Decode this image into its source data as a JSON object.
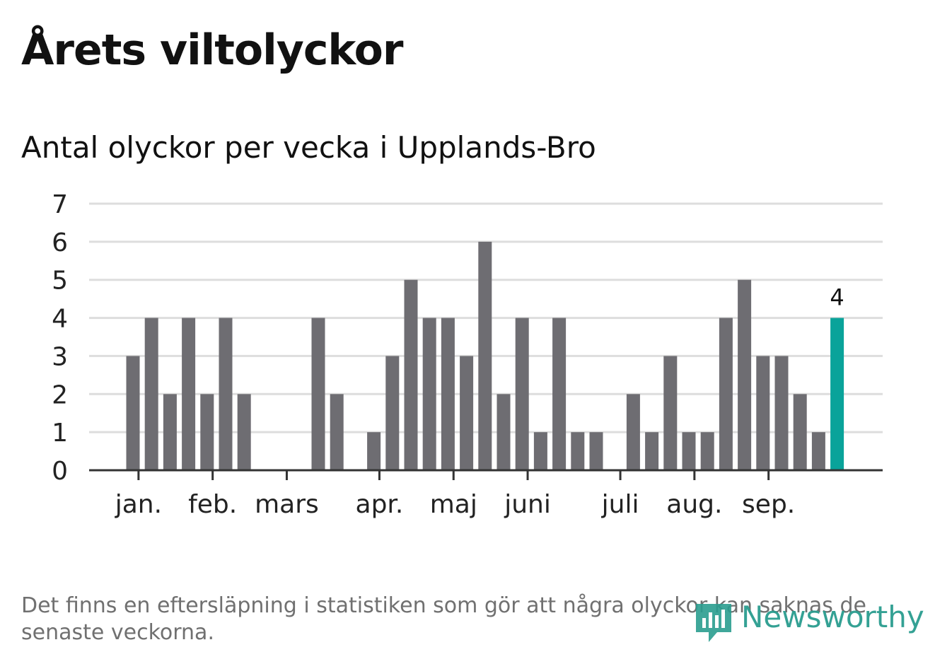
{
  "header": {
    "title": "Årets viltolyckor",
    "subtitle": "Antal olyckor per vecka i Upplands-Bro"
  },
  "footnote": "Det finns en eftersläpning i statistiken som gör att några olyckor kan saknas de senaste veckorna.",
  "logo": {
    "text": "Newsworthy",
    "icon": "newsworthy-logo-icon"
  },
  "colors": {
    "bar": "#6e6d72",
    "highlight": "#0aa39a",
    "grid": "#dddddd",
    "axis": "#333333"
  },
  "chart_data": {
    "type": "bar",
    "title": "Antal olyckor per vecka i Upplands-Bro",
    "xlabel": "",
    "ylabel": "",
    "ylim": [
      0,
      7
    ],
    "yticks": [
      0,
      1,
      2,
      3,
      4,
      5,
      6,
      7
    ],
    "grid": true,
    "week_slots": 41,
    "values": [
      0,
      0,
      3,
      4,
      2,
      4,
      2,
      4,
      2,
      0,
      0,
      0,
      4,
      2,
      0,
      1,
      3,
      5,
      4,
      4,
      3,
      6,
      2,
      4,
      1,
      4,
      1,
      1,
      0,
      2,
      1,
      3,
      1,
      1,
      4,
      5,
      3,
      3,
      2,
      1,
      4
    ],
    "highlight_index": 40,
    "highlight_label": "4",
    "month_labels": [
      {
        "label": "jan.",
        "week": 2.3
      },
      {
        "label": "feb.",
        "week": 6.3
      },
      {
        "label": "mars",
        "week": 10.3
      },
      {
        "label": "apr.",
        "week": 15.3
      },
      {
        "label": "maj",
        "week": 19.3
      },
      {
        "label": "juni",
        "week": 23.3
      },
      {
        "label": "juli",
        "week": 28.3
      },
      {
        "label": "aug.",
        "week": 32.3
      },
      {
        "label": "sep.",
        "week": 36.3
      }
    ]
  }
}
